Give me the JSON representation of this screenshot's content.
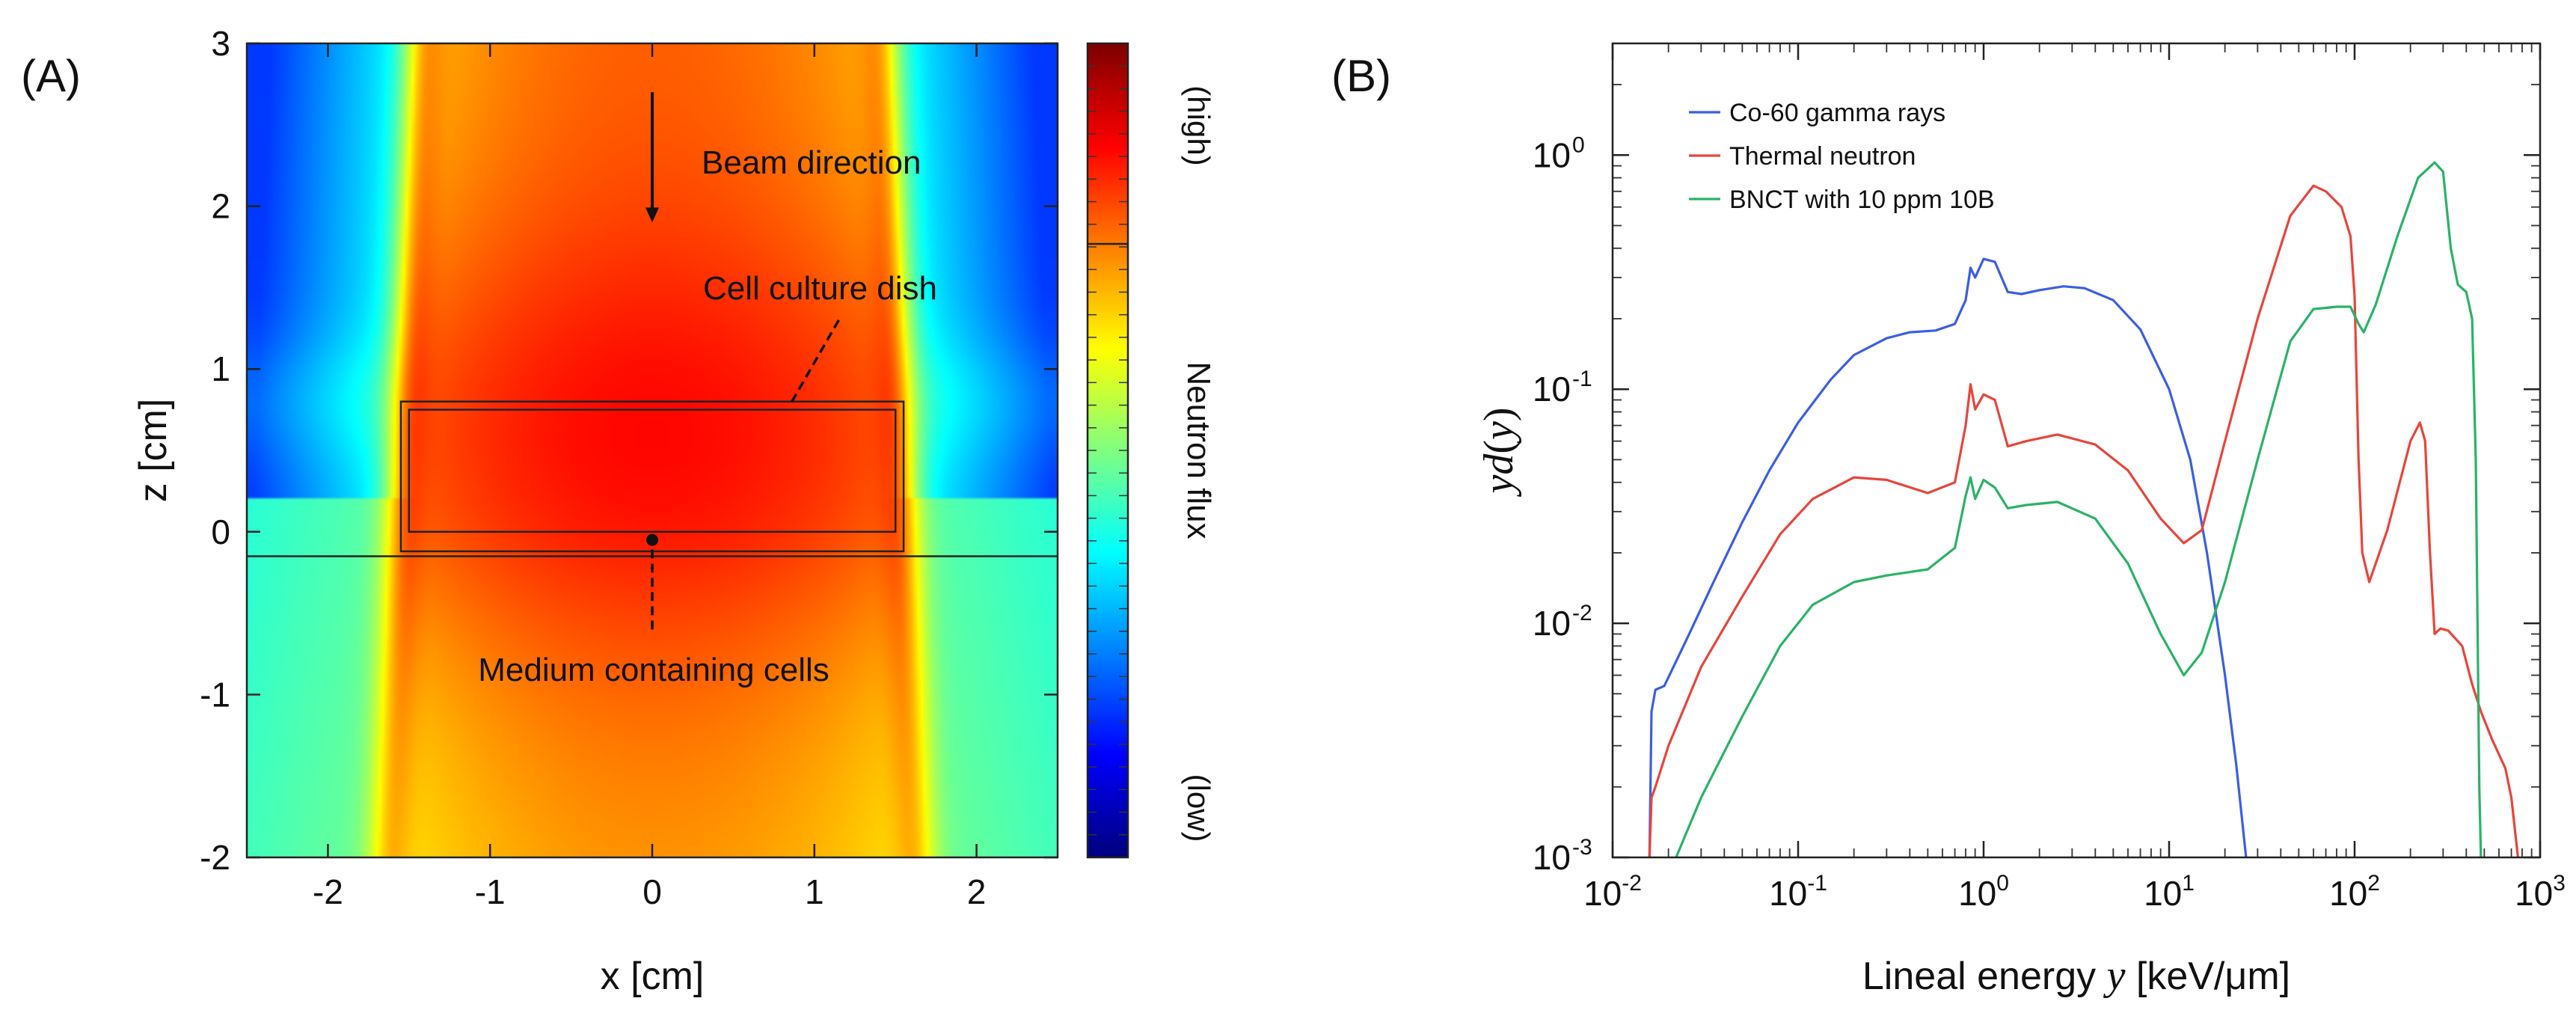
{
  "panels": {
    "a": {
      "label": "(A)"
    },
    "b": {
      "label": "(B)"
    }
  },
  "chart_data": [
    {
      "type": "heatmap",
      "panel": "A",
      "xlabel": "x [cm]",
      "ylabel": "z [cm]",
      "xlim": [
        -2.5,
        2.5
      ],
      "ylim": [
        -2,
        3
      ],
      "xticks": [
        -2,
        -1,
        0,
        1,
        2
      ],
      "xtick_labels": [
        "-2",
        "-1",
        "0",
        "1",
        "2"
      ],
      "yticks": [
        -2,
        -1,
        0,
        1,
        2,
        3
      ],
      "ytick_labels": [
        "-2",
        "-1",
        "0",
        "1",
        "2",
        "3"
      ],
      "colorbar": {
        "label": "Neutron flux",
        "high_label": "(high)",
        "low_label": "(low)",
        "colormap": "jet"
      },
      "annotations": {
        "beam": "Beam direction",
        "dish": "Cell culture dish",
        "medium": "Medium containing cells"
      },
      "beam_profile": {
        "top_half_width": 1.45,
        "bottom_half_width": 1.65,
        "peak_z": 0.6,
        "notes_flux_scale": "relative"
      },
      "dish": {
        "x_range": [
          -1.55,
          1.55
        ],
        "z_range": [
          -0.12,
          0.8
        ],
        "inner_x_range": [
          -1.5,
          1.5
        ],
        "inner_z_range": [
          0.0,
          0.75
        ]
      },
      "medium_line_z": -0.15,
      "beam_arrow": {
        "x": 0,
        "z_start": 2.7,
        "z_end": 1.9
      },
      "dish_pointer": {
        "from": [
          1.15,
          1.3
        ],
        "to": [
          0.85,
          0.78
        ]
      },
      "medium_pointer": {
        "from": [
          0,
          -0.6
        ],
        "to": [
          0,
          -0.05
        ]
      }
    },
    {
      "type": "line",
      "panel": "B",
      "xlabel_parts": [
        "Lineal energy ",
        "y",
        " [keV/μm]"
      ],
      "ylabel_parts": [
        "yd",
        "(",
        "y",
        ")"
      ],
      "xscale": "log",
      "yscale": "log",
      "xlim": [
        0.01,
        1000
      ],
      "ylim": [
        0.001,
        3
      ],
      "xticks": [
        0.01,
        0.1,
        1,
        10,
        100,
        1000
      ],
      "xtick_labels": [
        [
          "10",
          "-2"
        ],
        [
          "10",
          "-1"
        ],
        [
          "10",
          "0"
        ],
        [
          "10",
          "1"
        ],
        [
          "10",
          "2"
        ],
        [
          "10",
          "3"
        ]
      ],
      "yticks": [
        0.001,
        0.01,
        0.1,
        1
      ],
      "ytick_labels": [
        [
          "10",
          "-3"
        ],
        [
          "10",
          "-2"
        ],
        [
          "10",
          "-1"
        ],
        [
          "10",
          "0"
        ]
      ],
      "legend_position": "top-left",
      "series": [
        {
          "name": "Co-60 gamma rays",
          "color": "#3b5ee6",
          "points": [
            [
              0.0158,
              0.001
            ],
            [
              0.0162,
              0.0042
            ],
            [
              0.017,
              0.0052
            ],
            [
              0.019,
              0.0054
            ],
            [
              0.025,
              0.0085
            ],
            [
              0.035,
              0.015
            ],
            [
              0.05,
              0.027
            ],
            [
              0.07,
              0.045
            ],
            [
              0.1,
              0.072
            ],
            [
              0.15,
              0.11
            ],
            [
              0.2,
              0.14
            ],
            [
              0.3,
              0.165
            ],
            [
              0.4,
              0.175
            ],
            [
              0.55,
              0.178
            ],
            [
              0.7,
              0.19
            ],
            [
              0.8,
              0.24
            ],
            [
              0.85,
              0.33
            ],
            [
              0.9,
              0.3
            ],
            [
              1.0,
              0.36
            ],
            [
              1.15,
              0.35
            ],
            [
              1.35,
              0.26
            ],
            [
              1.6,
              0.255
            ],
            [
              2.0,
              0.265
            ],
            [
              2.7,
              0.275
            ],
            [
              3.5,
              0.27
            ],
            [
              5,
              0.24
            ],
            [
              7,
              0.18
            ],
            [
              10,
              0.1
            ],
            [
              13,
              0.05
            ],
            [
              16,
              0.02
            ],
            [
              20,
              0.006
            ],
            [
              23,
              0.0025
            ],
            [
              26,
              0.001
            ]
          ]
        },
        {
          "name": "Thermal neutron",
          "color": "#e8453c",
          "points": [
            [
              0.0158,
              0.001
            ],
            [
              0.0162,
              0.0018
            ],
            [
              0.017,
              0.002
            ],
            [
              0.02,
              0.003
            ],
            [
              0.03,
              0.0065
            ],
            [
              0.05,
              0.013
            ],
            [
              0.08,
              0.024
            ],
            [
              0.12,
              0.034
            ],
            [
              0.2,
              0.042
            ],
            [
              0.3,
              0.041
            ],
            [
              0.5,
              0.036
            ],
            [
              0.7,
              0.04
            ],
            [
              0.8,
              0.07
            ],
            [
              0.85,
              0.105
            ],
            [
              0.9,
              0.082
            ],
            [
              1.0,
              0.095
            ],
            [
              1.15,
              0.09
            ],
            [
              1.35,
              0.057
            ],
            [
              1.7,
              0.06
            ],
            [
              2.5,
              0.064
            ],
            [
              4,
              0.058
            ],
            [
              6,
              0.045
            ],
            [
              9,
              0.028
            ],
            [
              12,
              0.022
            ],
            [
              15,
              0.025
            ],
            [
              20,
              0.06
            ],
            [
              30,
              0.2
            ],
            [
              45,
              0.55
            ],
            [
              60,
              0.74
            ],
            [
              70,
              0.7
            ],
            [
              85,
              0.6
            ],
            [
              95,
              0.45
            ],
            [
              100,
              0.25
            ],
            [
              105,
              0.05
            ],
            [
              110,
              0.02
            ],
            [
              120,
              0.015
            ],
            [
              150,
              0.025
            ],
            [
              200,
              0.06
            ],
            [
              225,
              0.072
            ],
            [
              240,
              0.06
            ],
            [
              255,
              0.02
            ],
            [
              270,
              0.009
            ],
            [
              290,
              0.0095
            ],
            [
              320,
              0.0093
            ],
            [
              380,
              0.008
            ],
            [
              430,
              0.0055
            ],
            [
              480,
              0.0042
            ],
            [
              550,
              0.0032
            ],
            [
              650,
              0.0024
            ],
            [
              700,
              0.0018
            ],
            [
              760,
              0.001
            ]
          ]
        },
        {
          "name": "BNCT with 10 ppm 10B",
          "color": "#2ab366",
          "points": [
            [
              0.022,
              0.001
            ],
            [
              0.03,
              0.0018
            ],
            [
              0.05,
              0.004
            ],
            [
              0.08,
              0.008
            ],
            [
              0.12,
              0.012
            ],
            [
              0.2,
              0.015
            ],
            [
              0.3,
              0.016
            ],
            [
              0.5,
              0.017
            ],
            [
              0.7,
              0.021
            ],
            [
              0.8,
              0.035
            ],
            [
              0.85,
              0.042
            ],
            [
              0.9,
              0.034
            ],
            [
              1.0,
              0.041
            ],
            [
              1.15,
              0.038
            ],
            [
              1.35,
              0.031
            ],
            [
              1.7,
              0.032
            ],
            [
              2.5,
              0.033
            ],
            [
              4,
              0.028
            ],
            [
              6,
              0.018
            ],
            [
              9,
              0.009
            ],
            [
              12,
              0.006
            ],
            [
              15,
              0.0075
            ],
            [
              20,
              0.015
            ],
            [
              30,
              0.05
            ],
            [
              45,
              0.16
            ],
            [
              60,
              0.22
            ],
            [
              80,
              0.225
            ],
            [
              95,
              0.225
            ],
            [
              105,
              0.19
            ],
            [
              112,
              0.175
            ],
            [
              130,
              0.23
            ],
            [
              170,
              0.45
            ],
            [
              220,
              0.8
            ],
            [
              270,
              0.93
            ],
            [
              300,
              0.85
            ],
            [
              330,
              0.4
            ],
            [
              360,
              0.28
            ],
            [
              400,
              0.26
            ],
            [
              430,
              0.2
            ],
            [
              450,
              0.05
            ],
            [
              470,
              0.002
            ],
            [
              480,
              0.001
            ]
          ]
        }
      ]
    }
  ]
}
